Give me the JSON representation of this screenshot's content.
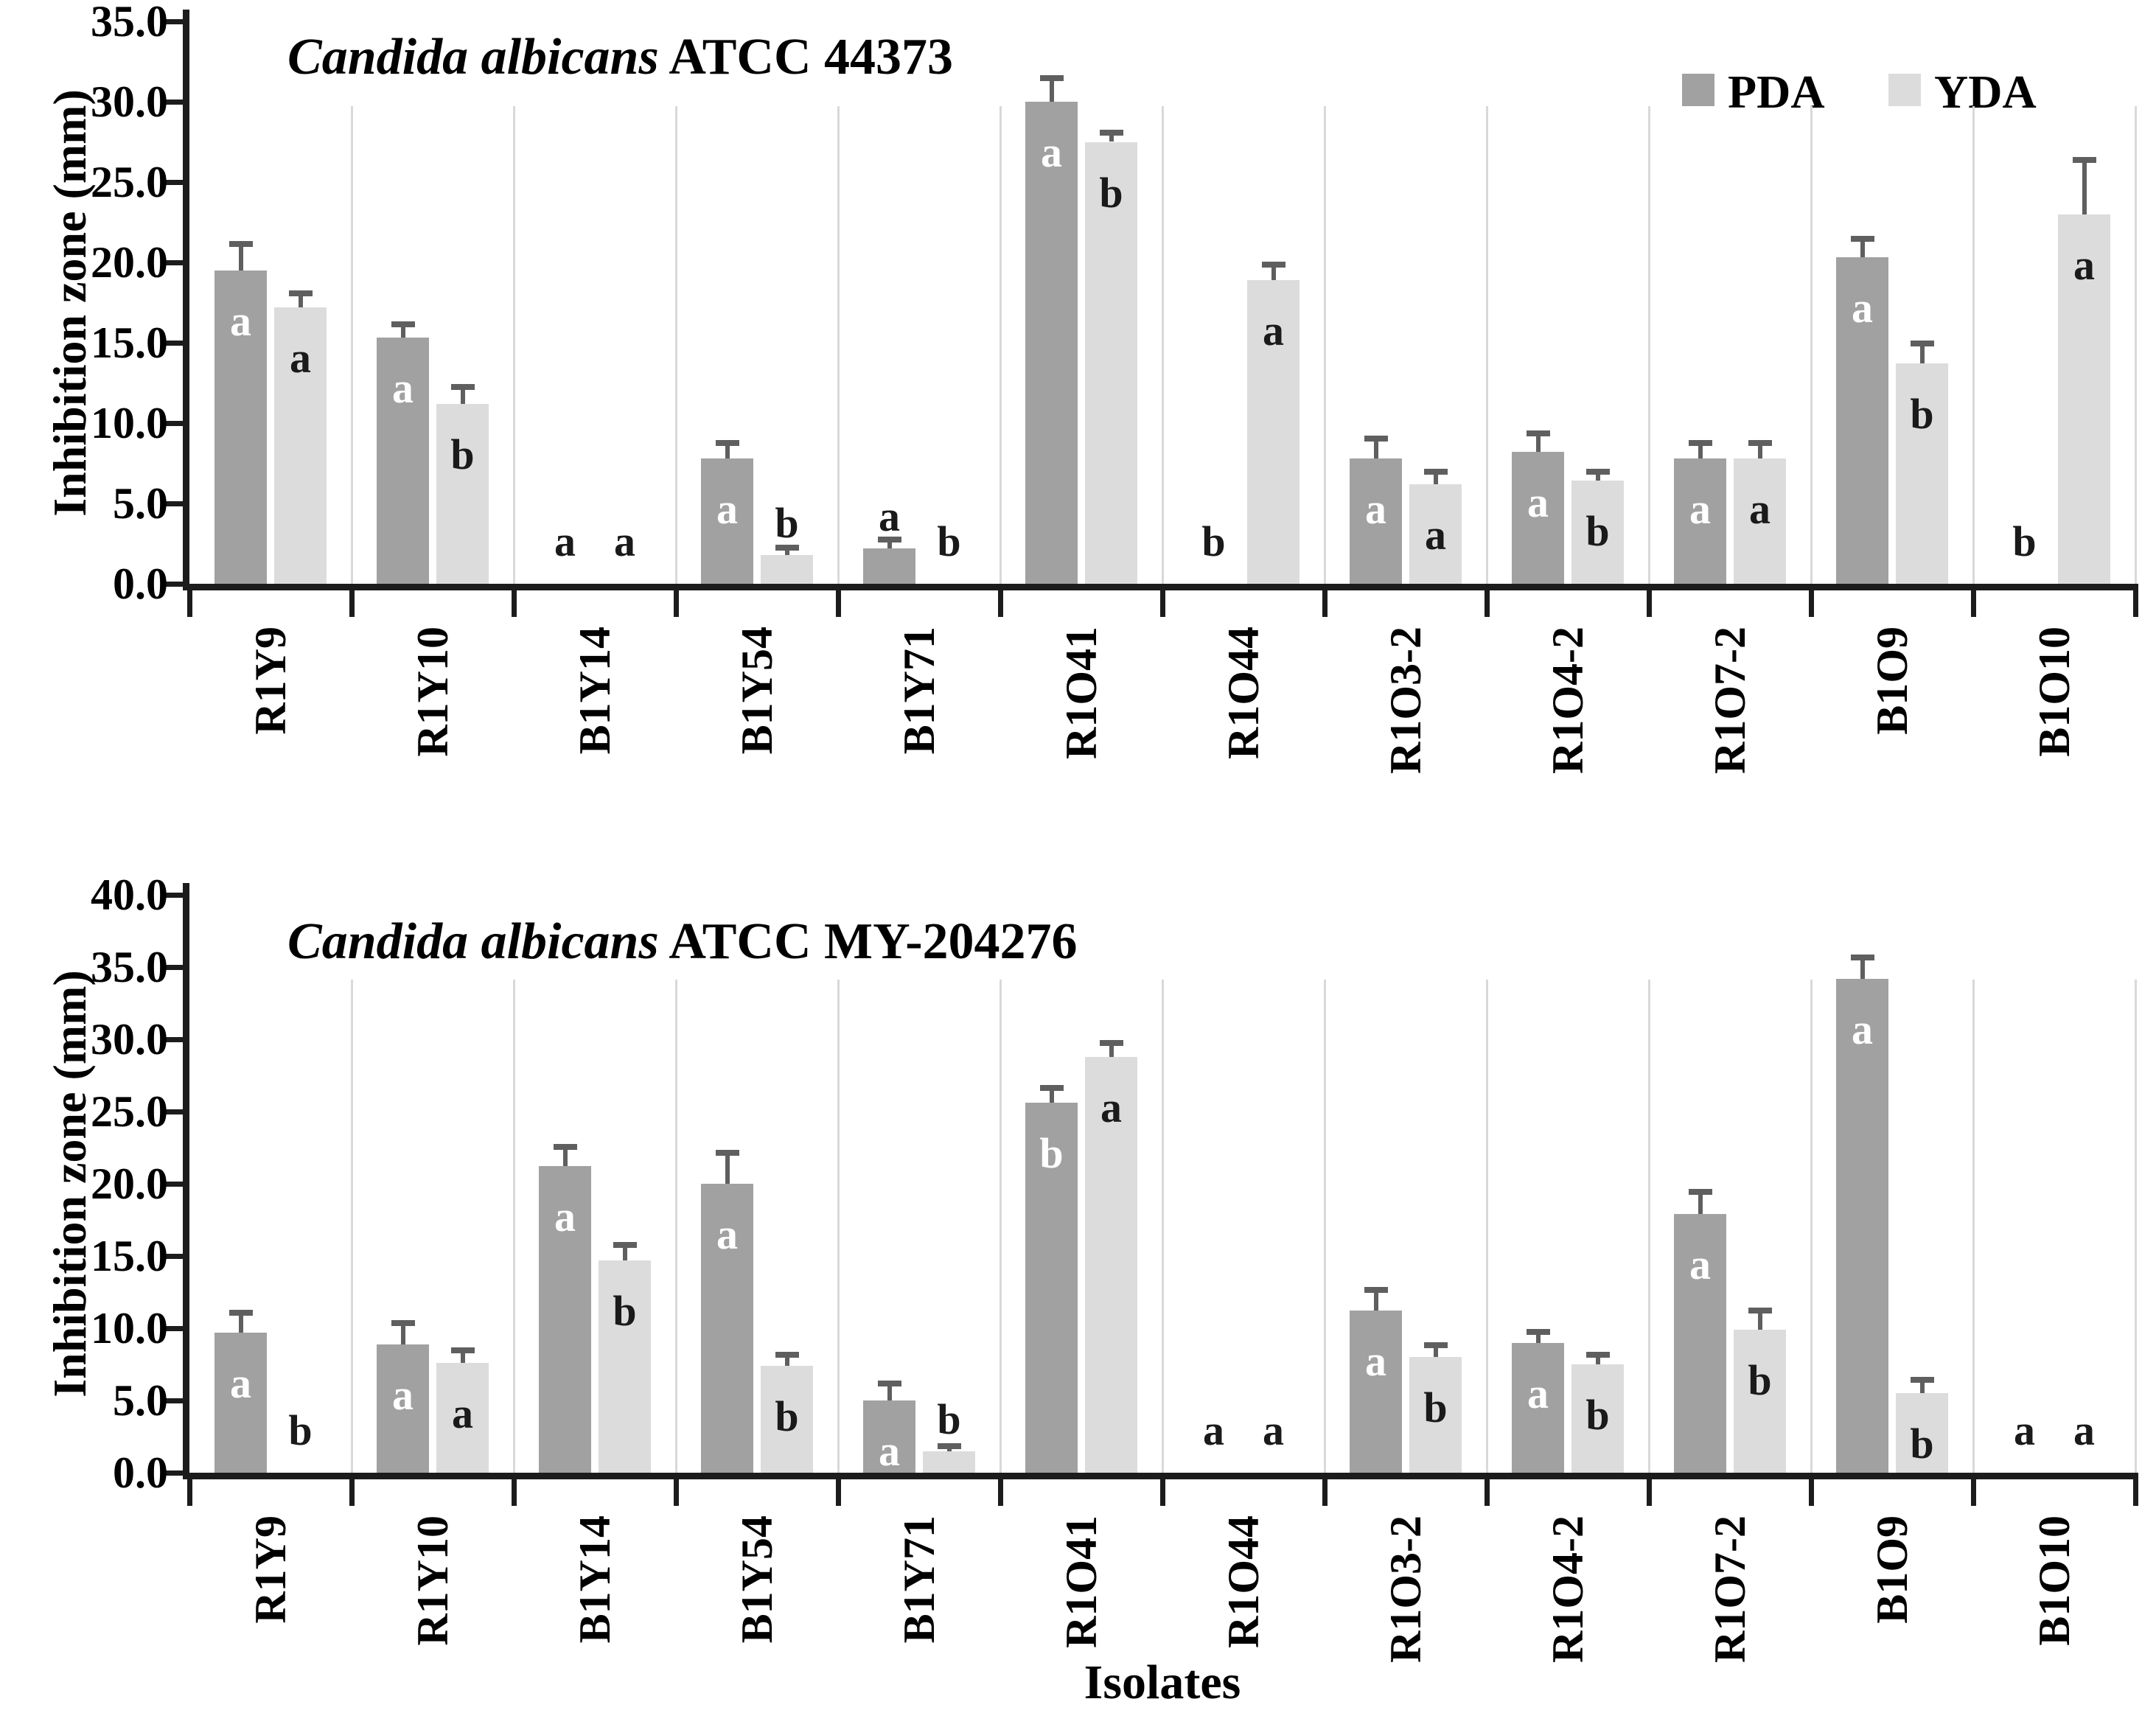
{
  "figure": {
    "xlabel": "Isolates",
    "ylabel": "Inhibition zone (mm)"
  },
  "legend": {
    "items": [
      {
        "label": "PDA",
        "color": "#a1a1a1"
      },
      {
        "label": "YDA",
        "color": "#dcdcdc"
      }
    ]
  },
  "colors": {
    "pda": "#a1a1a1",
    "yda": "#dcdcdc",
    "error_bar": "#5f5f5f",
    "axis": "#1c1c1c",
    "gridline": "#d9d9d9",
    "letter_on_pda": "#ffffff",
    "letter_dark": "#1a1a1a"
  },
  "chart_data": [
    {
      "type": "bar",
      "title_italic": "Candida albicans",
      "title_rest": " ATCC 44373",
      "ylabel": "Inhibition zone (mm)",
      "ylim": [
        0,
        35
      ],
      "ytick_step": 5,
      "yticks": [
        "35.0",
        "30.0",
        "25.0",
        "20.0",
        "15.0",
        "10.0",
        "5.0",
        "0.0"
      ],
      "grid": "vertical-category-separators",
      "legend_position": "top-right",
      "categories": [
        "R1Y9",
        "R1Y10",
        "B1Y14",
        "B1Y54",
        "B1Y71",
        "R1O41",
        "R1O44",
        "R1O3-2",
        "R1O4-2",
        "R1O7-2",
        "B1O9",
        "B1O10"
      ],
      "series": [
        {
          "name": "PDA",
          "values": [
            19.5,
            15.3,
            0,
            7.8,
            2.2,
            30.0,
            0,
            7.8,
            8.2,
            7.8,
            20.3,
            0
          ],
          "errors": [
            1.7,
            0.9,
            null,
            1.0,
            0.6,
            1.5,
            null,
            1.3,
            1.2,
            1.0,
            1.2,
            null
          ],
          "letters": [
            "a",
            "a",
            "a",
            "a",
            "a",
            "a",
            "b",
            "a",
            "a",
            "a",
            "a",
            "b"
          ],
          "letter_pos": [
            "in",
            "in",
            "zero",
            "in",
            "up",
            "in",
            "zero",
            "in",
            "in",
            "in",
            "in",
            "zero"
          ]
        },
        {
          "name": "YDA",
          "values": [
            17.2,
            11.2,
            0,
            1.8,
            0,
            27.5,
            18.9,
            6.2,
            6.4,
            7.8,
            13.7,
            23.0
          ],
          "errors": [
            0.9,
            1.1,
            null,
            0.5,
            null,
            0.6,
            1.0,
            0.8,
            0.6,
            1.0,
            1.3,
            3.4
          ],
          "letters": [
            "a",
            "b",
            "a",
            "b",
            "b",
            "b",
            "a",
            "a",
            "b",
            "a",
            "b",
            "a"
          ],
          "letter_pos": [
            "in",
            "in",
            "zero",
            "up",
            "zero",
            "in",
            "in",
            "in",
            "in",
            "in",
            "in",
            "in"
          ]
        }
      ]
    },
    {
      "type": "bar",
      "title_italic": "Candida albicans",
      "title_rest": " ATCC MY-204276",
      "ylabel": "Inhibition zone (mm)",
      "xlabel": "Isolates",
      "ylim": [
        0,
        40
      ],
      "ytick_step": 5,
      "yticks": [
        "40.0",
        "35.0",
        "30.0",
        "25.0",
        "20.0",
        "15.0",
        "10.0",
        "5.0",
        "0.0"
      ],
      "grid": "vertical-category-separators",
      "categories": [
        "R1Y9",
        "R1Y10",
        "B1Y14",
        "B1Y54",
        "B1Y71",
        "R1O41",
        "R1O44",
        "R1O3-2",
        "R1O4-2",
        "R1O7-2",
        "B1O9",
        "B1O10"
      ],
      "series": [
        {
          "name": "PDA",
          "values": [
            9.7,
            8.9,
            21.2,
            20.0,
            5.0,
            25.6,
            0,
            11.2,
            9.0,
            17.9,
            34.2,
            0
          ],
          "errors": [
            1.4,
            1.5,
            1.4,
            2.2,
            1.2,
            1.1,
            null,
            1.5,
            0.8,
            1.6,
            1.5,
            null
          ],
          "letters": [
            "a",
            "a",
            "a",
            "a",
            "a",
            "b",
            "a",
            "a",
            "a",
            "a",
            "a",
            "a"
          ],
          "letter_pos": [
            "in",
            "in",
            "in",
            "in",
            "in",
            "in",
            "zero",
            "in",
            "in",
            "in",
            "in",
            "zero"
          ]
        },
        {
          "name": "YDA",
          "values": [
            0,
            7.6,
            14.7,
            7.4,
            1.5,
            28.8,
            0,
            8.0,
            7.5,
            9.9,
            5.5,
            0
          ],
          "errors": [
            null,
            0.9,
            1.1,
            0.8,
            0.4,
            1.0,
            null,
            0.9,
            0.7,
            1.4,
            1.0,
            null
          ],
          "letters": [
            "b",
            "a",
            "b",
            "b",
            "b",
            "a",
            "a",
            "b",
            "b",
            "b",
            "b",
            "a"
          ],
          "letter_pos": [
            "zero",
            "in",
            "in",
            "in",
            "up",
            "in",
            "zero",
            "in",
            "in",
            "in",
            "in",
            "zero"
          ]
        }
      ]
    }
  ]
}
